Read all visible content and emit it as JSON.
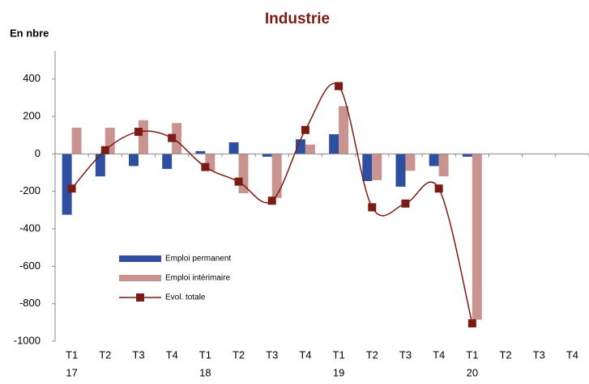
{
  "chart_data": {
    "type": "bar-line",
    "title": "Industrie",
    "y_label": "En nbre",
    "categories": [
      "T1",
      "T2",
      "T3",
      "T4",
      "T1",
      "T2",
      "T3",
      "T4",
      "T1",
      "T2",
      "T3",
      "T4",
      "T1",
      "T2",
      "T3",
      "T4"
    ],
    "year_labels": [
      "17",
      null,
      null,
      null,
      "18",
      null,
      null,
      null,
      "19",
      null,
      null,
      null,
      "20",
      null,
      null,
      null
    ],
    "series": [
      {
        "name": "Emploi permanent",
        "type": "bar",
        "color": "#2e4fa0",
        "values": [
          -325,
          -120,
          -65,
          -80,
          15,
          62,
          -15,
          78,
          105,
          -145,
          -175,
          -65,
          -15,
          null,
          null,
          null
        ]
      },
      {
        "name": "Emploi intérimaire",
        "type": "bar",
        "color": "#c9948f",
        "values": [
          140,
          140,
          180,
          165,
          -90,
          -210,
          -235,
          50,
          255,
          -140,
          -90,
          -120,
          -885,
          null,
          null,
          null
        ]
      },
      {
        "name": "Evol. totale",
        "type": "line",
        "color": "#7b1c14",
        "values": [
          -185,
          20,
          118,
          85,
          -70,
          -148,
          -250,
          128,
          362,
          -285,
          -265,
          -185,
          -905,
          null,
          null,
          null
        ]
      }
    ],
    "ylim": [
      -1000,
      550
    ],
    "yticks": [
      -1000,
      -800,
      -600,
      -400,
      -200,
      0,
      200,
      400
    ],
    "grid": false,
    "legend": "lower left"
  }
}
